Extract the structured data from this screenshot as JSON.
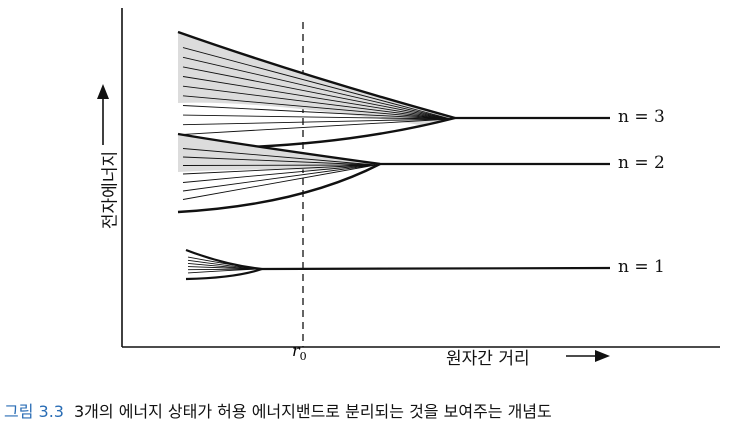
{
  "figure": {
    "xlabel": "원자간 거리",
    "ylabel": "전자에너지",
    "r0_symbol": "r",
    "r0_subscript": "0",
    "levels": [
      {
        "label": "n = 3"
      },
      {
        "label": "n = 2"
      },
      {
        "label": "n = 1"
      }
    ]
  },
  "caption": {
    "label": "그림 3.3",
    "text": "3개의 에너지 상태가 허용 에너지밴드로 분리되는 것을 보여주는 개념도"
  },
  "colors": {
    "band_fill": "#dcdcdc",
    "line": "#111111",
    "caption_label": "#2a6db5"
  }
}
